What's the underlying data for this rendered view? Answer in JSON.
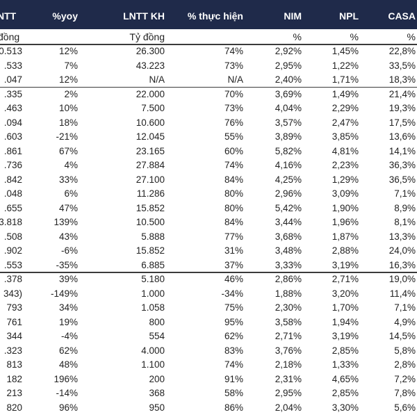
{
  "header": {
    "columns": [
      "NTT",
      "%yoy",
      "LNTT KH",
      "% thực hiện",
      "NIM",
      "NPL",
      "CASA"
    ]
  },
  "units": {
    "c0": "đồng",
    "c2": "Tỷ đồng",
    "c4": "%",
    "c5": "%",
    "c6": "%"
  },
  "rows": [
    [
      "0.513",
      "12%",
      "26.300",
      "74%",
      "2,92%",
      "1,45%",
      "22,8%"
    ],
    [
      ".533",
      "7%",
      "43.223",
      "73%",
      "2,95%",
      "1,22%",
      "33,5%"
    ],
    [
      ".047",
      "12%",
      "N/A",
      "N/A",
      "2,40%",
      "1,71%",
      "18,3%"
    ],
    [
      ".335",
      "2%",
      "22.000",
      "70%",
      "3,69%",
      "1,49%",
      "21,4%"
    ],
    [
      ".463",
      "10%",
      "7.500",
      "73%",
      "4,04%",
      "2,29%",
      "19,3%"
    ],
    [
      ".094",
      "18%",
      "10.600",
      "76%",
      "3,57%",
      "2,47%",
      "17,5%"
    ],
    [
      ".603",
      "-21%",
      "12.045",
      "55%",
      "3,89%",
      "3,85%",
      "13,6%"
    ],
    [
      ".861",
      "67%",
      "23.165",
      "60%",
      "5,82%",
      "4,81%",
      "14,1%"
    ],
    [
      ".736",
      "4%",
      "27.884",
      "74%",
      "4,16%",
      "2,23%",
      "36,3%"
    ],
    [
      ".842",
      "33%",
      "27.100",
      "84%",
      "4,25%",
      "1,29%",
      "36,5%"
    ],
    [
      ".048",
      "6%",
      "11.286",
      "80%",
      "2,96%",
      "3,09%",
      "7,1%"
    ],
    [
      ".655",
      "47%",
      "15.852",
      "80%",
      "5,42%",
      "1,90%",
      "8,9%"
    ],
    [
      "3.818",
      "139%",
      "10.500",
      "84%",
      "3,44%",
      "1,96%",
      "8,1%"
    ],
    [
      ".508",
      "43%",
      "5.888",
      "77%",
      "3,68%",
      "1,87%",
      "13,3%"
    ],
    [
      ".902",
      "-6%",
      "15.852",
      "31%",
      "3,48%",
      "2,88%",
      "24,0%"
    ],
    [
      ".553",
      "-35%",
      "6.885",
      "37%",
      "3,33%",
      "3,19%",
      "16,3%"
    ],
    [
      ".378",
      "39%",
      "5.180",
      "46%",
      "2,86%",
      "2,71%",
      "19,0%"
    ],
    [
      "343)",
      "-149%",
      "1.000",
      "-34%",
      "1,88%",
      "3,20%",
      "11,4%"
    ],
    [
      "793",
      "34%",
      "1.058",
      "75%",
      "2,30%",
      "1,70%",
      "7,1%"
    ],
    [
      "761",
      "19%",
      "800",
      "95%",
      "3,58%",
      "1,94%",
      "4,9%"
    ],
    [
      "344",
      "-4%",
      "554",
      "62%",
      "2,71%",
      "3,19%",
      "14,5%"
    ],
    [
      ".323",
      "62%",
      "4.000",
      "83%",
      "3,76%",
      "2,85%",
      "5,8%"
    ],
    [
      "813",
      "48%",
      "1.100",
      "74%",
      "2,18%",
      "1,33%",
      "2,8%"
    ],
    [
      "182",
      "196%",
      "200",
      "91%",
      "2,31%",
      "4,65%",
      "7,2%"
    ],
    [
      "213",
      "-14%",
      "368",
      "58%",
      "2,95%",
      "2,85%",
      "7,8%"
    ],
    [
      "820",
      "96%",
      "950",
      "86%",
      "2,04%",
      "3,30%",
      "5,6%"
    ]
  ]
}
